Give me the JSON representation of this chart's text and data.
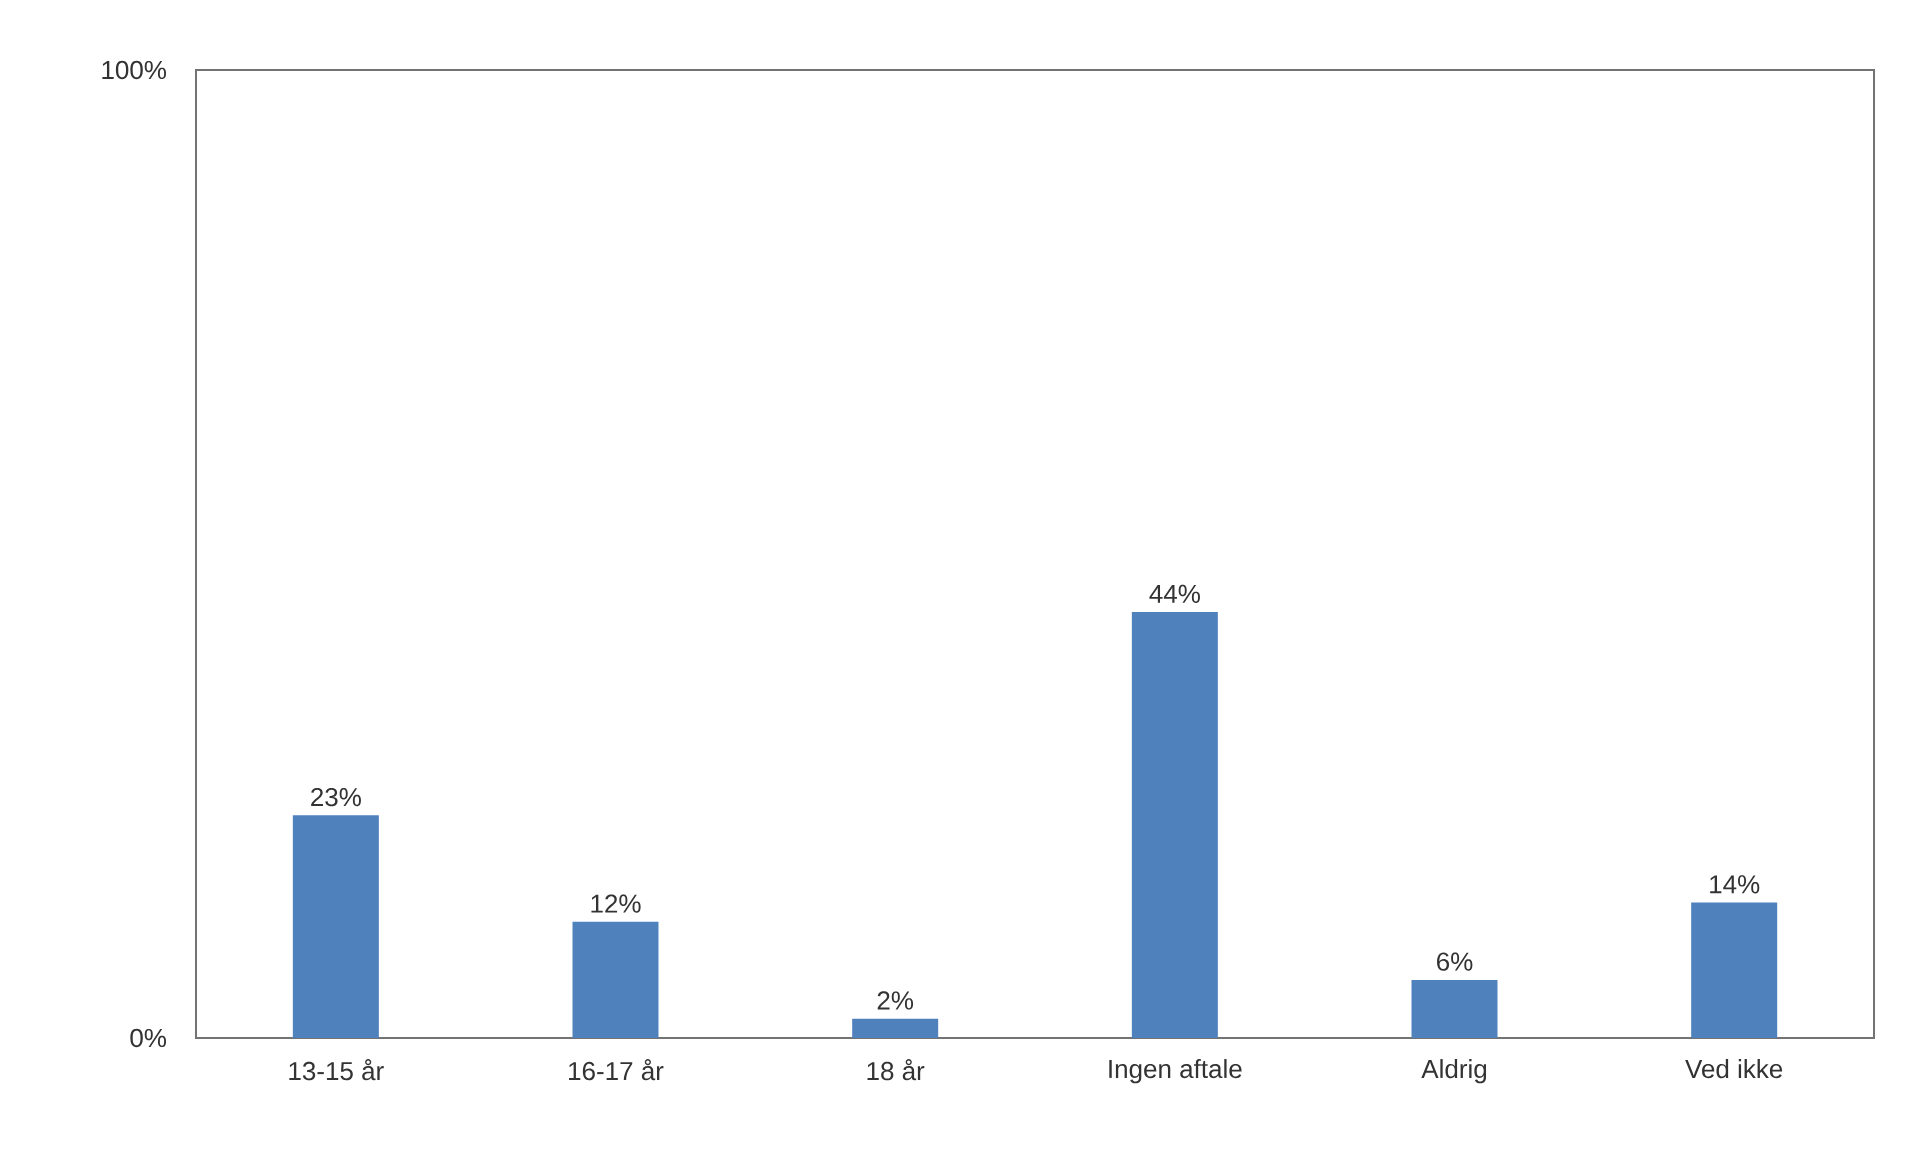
{
  "chart_data": {
    "type": "bar",
    "categories": [
      "13-15 år",
      "16-17 år",
      "18 år",
      "Ingen aftale",
      "Aldrig",
      "Ved ikke"
    ],
    "values": [
      23,
      12,
      2,
      44,
      6,
      14
    ],
    "value_labels": [
      "23%",
      "12%",
      "2%",
      "44%",
      "6%",
      "14%"
    ],
    "color": "#4f81bd",
    "ylim": [
      0,
      100
    ],
    "yticks": [
      {
        "value": 0,
        "label": "0%"
      },
      {
        "value": 100,
        "label": "100%"
      }
    ]
  }
}
